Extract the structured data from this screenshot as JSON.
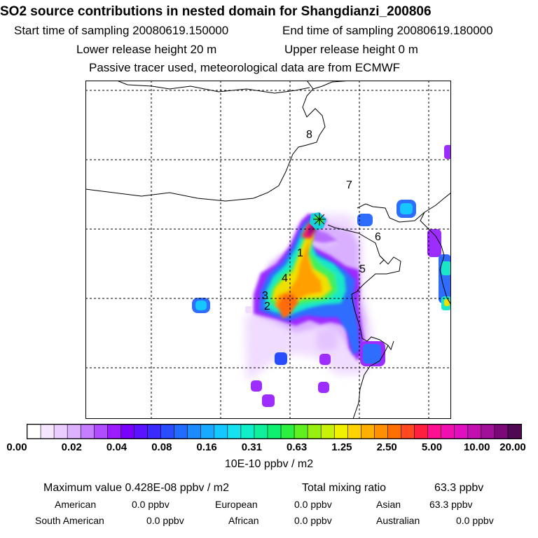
{
  "header": {
    "title": "SO2 source contributions in nested domain for Shangdianzi_200806",
    "start_time": "Start time of sampling 20080619.150000",
    "end_time": "End time of sampling 20080619.180000",
    "lower_release": "Lower release height   20 m",
    "upper_release": "Upper release height    0 m",
    "tracer_note": "Passive tracer used, meteorological data are from ECMWF"
  },
  "map": {
    "region_labels": [
      {
        "text": "1"
      },
      {
        "text": "2"
      },
      {
        "text": "3"
      },
      {
        "text": "4"
      },
      {
        "text": "5"
      },
      {
        "text": "6"
      },
      {
        "text": "7"
      },
      {
        "text": "8"
      }
    ],
    "receptor_marker": "star-crosshair-icon"
  },
  "colorbar": {
    "colors": [
      "#ffffff",
      "#f6e6ff",
      "#eccdff",
      "#dcb2ff",
      "#c77dff",
      "#b14dff",
      "#9a1cff",
      "#7a00ff",
      "#5a12ff",
      "#3a2aff",
      "#2a4cff",
      "#1f6cff",
      "#1a8cff",
      "#18aaff",
      "#16c6ff",
      "#14e2f0",
      "#10f0c8",
      "#10f09c",
      "#10f070",
      "#2cf040",
      "#60f020",
      "#98f010",
      "#c8f008",
      "#f0f000",
      "#ffd200",
      "#ffb000",
      "#ff9000",
      "#ff7000",
      "#ff4a20",
      "#ff2040",
      "#ff1090",
      "#f010b0",
      "#e010c0",
      "#c010b0",
      "#a01098",
      "#7a0878",
      "#500850"
    ],
    "ticks": [
      "0.00",
      "0.02",
      "0.04",
      "0.08",
      "0.16",
      "0.31",
      "0.63",
      "1.25",
      "2.50",
      "5.00",
      "10.00",
      "20.00"
    ],
    "unit": "10E-10 ppbv / m2"
  },
  "summary": {
    "max_label": "Maximum value  0.428E-08 ppbv / m2",
    "total_label": "Total mixing ratio",
    "total_value": "63.3 ppbv",
    "american_label": "American",
    "american_value": "0.0 ppbv",
    "european_label": "European",
    "european_value": "0.0 ppbv",
    "asian_label": "Asian",
    "asian_value": "63.3 ppbv",
    "south_american_label": "South American",
    "south_american_value": "0.0 ppbv",
    "african_label": "African",
    "african_value": "0.0 ppbv",
    "australian_label": "Australian",
    "australian_value": "0.0 ppbv"
  }
}
